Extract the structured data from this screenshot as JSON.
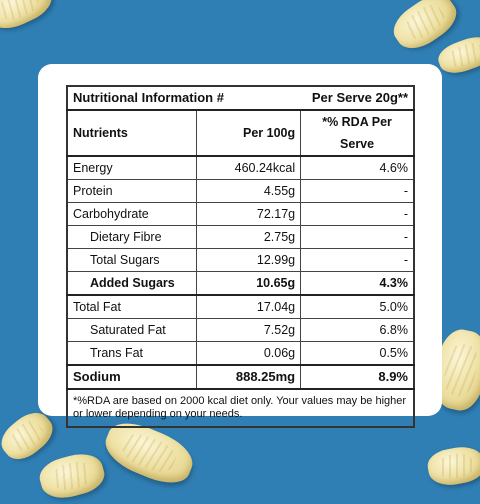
{
  "table": {
    "title": "Nutritional Information #",
    "serve": "Per Serve 20g**",
    "columns": [
      "Nutrients",
      "Per 100g",
      "*% RDA Per Serve"
    ],
    "rows": [
      {
        "name": "Energy",
        "per100": "460.24kcal",
        "rda": "4.6%"
      },
      {
        "name": "Protein",
        "per100": "4.55g",
        "rda": "-"
      },
      {
        "name": "Carbohydrate",
        "per100": "72.17g",
        "rda": "-"
      },
      {
        "name": "Dietary Fibre",
        "per100": "2.75g",
        "rda": "-"
      },
      {
        "name": "Total Sugars",
        "per100": "12.99g",
        "rda": "-"
      },
      {
        "name": "Added Sugars",
        "per100": "10.65g",
        "rda": "4.3%"
      },
      {
        "name": "Total Fat",
        "per100": "17.04g",
        "rda": "5.0%"
      },
      {
        "name": "Saturated Fat",
        "per100": "7.52g",
        "rda": "6.8%"
      },
      {
        "name": "Trans Fat",
        "per100": "0.06g",
        "rda": "0.5%"
      },
      {
        "name": "Sodium",
        "per100": "888.25mg",
        "rda": "8.9%"
      }
    ],
    "footnote": "*%RDA are based on 2000 kcal diet only. Your values may be higher or lower depending on your needs."
  },
  "colors": {
    "background": "#2f7fb5",
    "card": "#ffffff"
  }
}
